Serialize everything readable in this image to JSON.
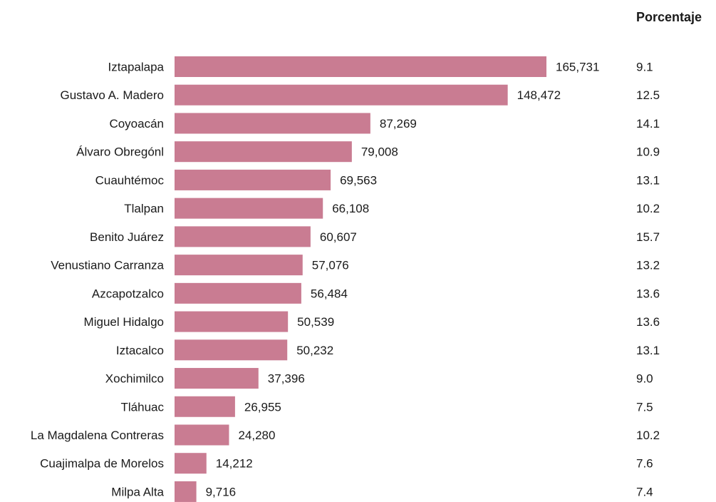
{
  "chart_data": {
    "type": "bar",
    "orientation": "horizontal",
    "categories": [
      "Iztapalapa",
      "Gustavo A. Madero",
      "Coyoacán",
      "Álvaro Obregónl",
      "Cuauhtémoc",
      "Tlalpan",
      "Benito Juárez",
      "Venustiano Carranza",
      "Azcapotzalco",
      "Miguel Hidalgo",
      "Iztacalco",
      "Xochimilco",
      "Tláhuac",
      "La Magdalena Contreras",
      "Cuajimalpa de Morelos",
      "Milpa Alta"
    ],
    "values": [
      165731,
      148472,
      87269,
      79008,
      69563,
      66108,
      60607,
      57076,
      56484,
      50539,
      50232,
      37396,
      26955,
      24280,
      14212,
      9716
    ],
    "value_labels": [
      "165,731",
      "148,472",
      "87,269",
      "79,008",
      "69,563",
      "66,108",
      "60,607",
      "57,076",
      "56,484",
      "50,539",
      "50,232",
      "37,396",
      "26,955",
      "24,280",
      "14,212",
      "9,716"
    ],
    "percent_header": "Porcentaje",
    "percentages": [
      "9.1",
      "12.5",
      "14.1",
      "10.9",
      "13.1",
      "10.2",
      "15.7",
      "13.2",
      "13.6",
      "13.6",
      "13.1",
      "9.0",
      "7.5",
      "10.2",
      "7.6",
      "7.4"
    ],
    "bar_color": "#c97c92",
    "title": "",
    "xlabel": "",
    "ylabel": "",
    "xlim": [
      0,
      165731
    ],
    "grid": false
  }
}
